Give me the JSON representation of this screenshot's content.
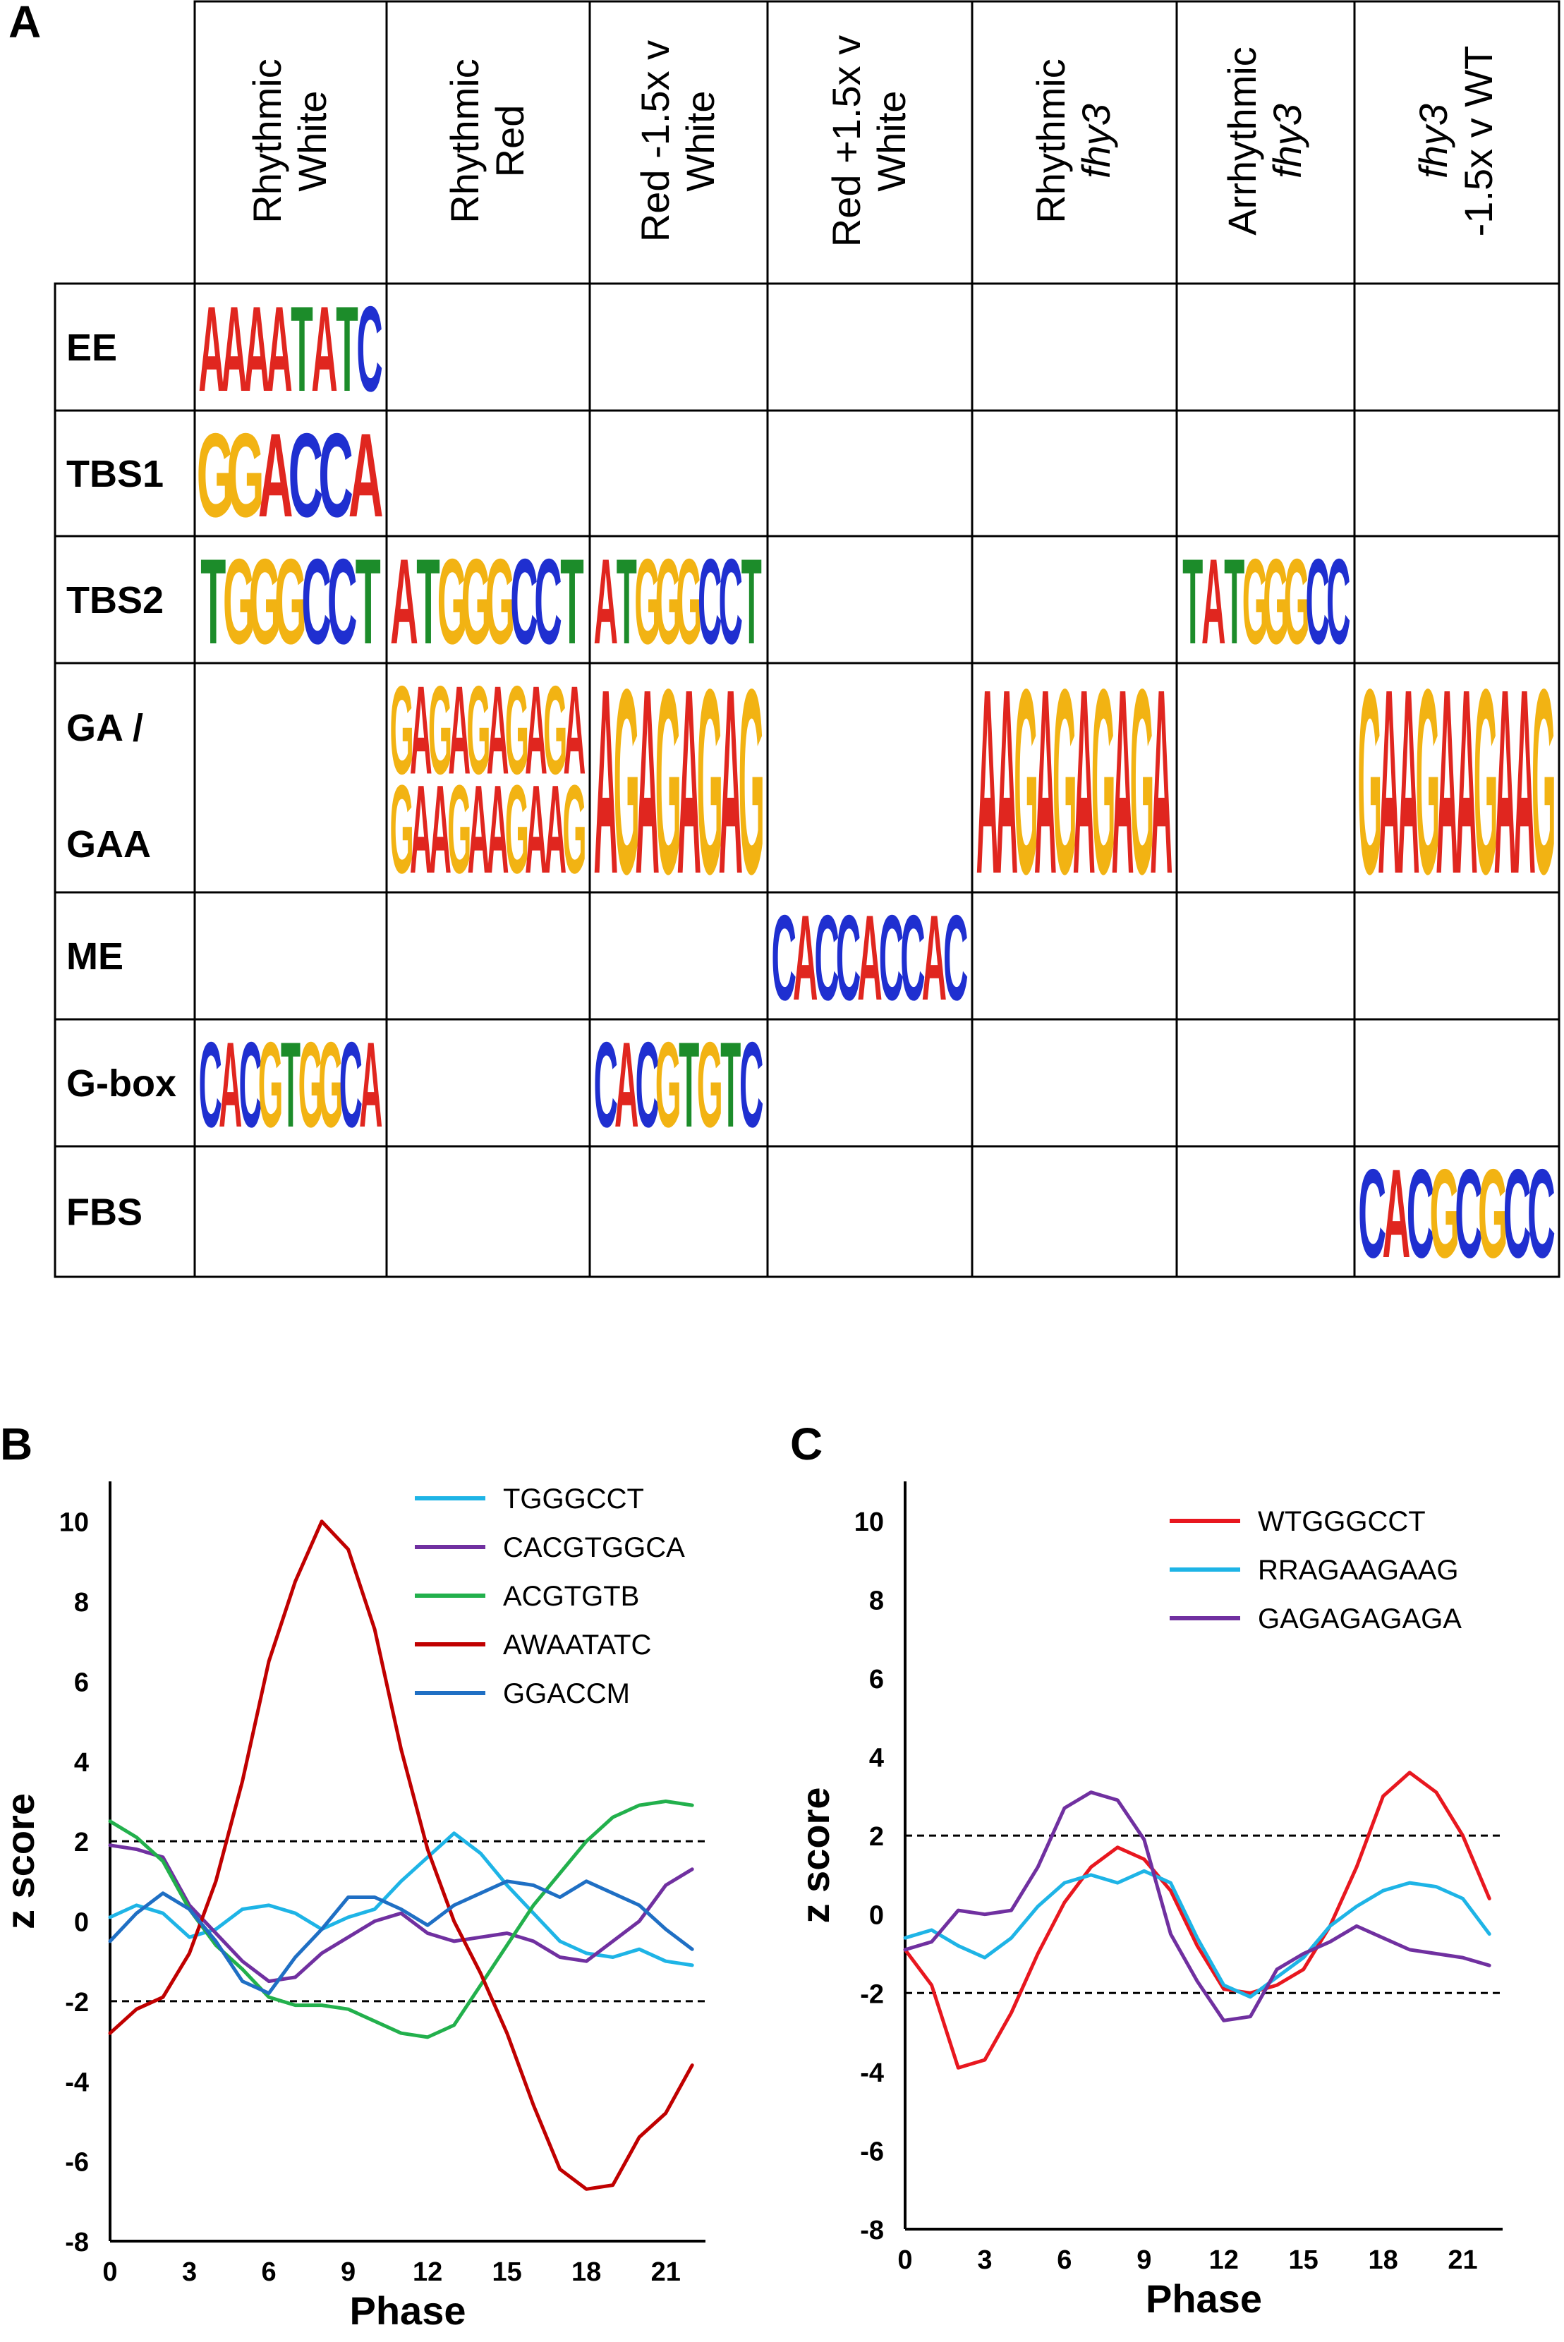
{
  "panel_a": {
    "letter": "A",
    "columns": [
      {
        "line1": "Rhythmic",
        "line2": "White",
        "italic1": false,
        "italic2": false
      },
      {
        "line1": "Rhythmic",
        "line2": "Red",
        "italic1": false,
        "italic2": false
      },
      {
        "line1": "Red -1.5x v",
        "line2": "White",
        "italic1": false,
        "italic2": false
      },
      {
        "line1": "Red +1.5x v",
        "line2": "White",
        "italic1": false,
        "italic2": false
      },
      {
        "line1": "Rhythmic",
        "line2": "fhy3",
        "italic1": false,
        "italic2": true
      },
      {
        "line1": "Arrhythmic",
        "line2": "fhy3",
        "italic1": false,
        "italic2": true
      },
      {
        "line1": "fhy3",
        "line2": "-1.5x v WT",
        "italic1": true,
        "italic2": false
      }
    ],
    "rows": [
      {
        "label": "EE",
        "label2": ""
      },
      {
        "label": "TBS1",
        "label2": ""
      },
      {
        "label": "TBS2",
        "label2": ""
      },
      {
        "label": "GA /",
        "label2": "GAA"
      },
      {
        "label": "ME",
        "label2": ""
      },
      {
        "label": "G-box",
        "label2": ""
      },
      {
        "label": "FBS",
        "label2": ""
      }
    ],
    "motifs": [
      {
        "row": 0,
        "col": 0,
        "seq": "AAAATATC"
      },
      {
        "row": 1,
        "col": 0,
        "seq": "GGACCA"
      },
      {
        "row": 2,
        "col": 0,
        "seq": "TGGGCCT"
      },
      {
        "row": 2,
        "col": 1,
        "seq": "ATGGGCCT"
      },
      {
        "row": 2,
        "col": 2,
        "seq": "ATGGGCCT"
      },
      {
        "row": 2,
        "col": 5,
        "seq": "TATGGGCC"
      },
      {
        "row": 3,
        "col": 1,
        "seq": "GAGAGAGAGA",
        "half": "top"
      },
      {
        "row": 3,
        "col": 1,
        "seq": "GAAGAAGAAG",
        "half": "bottom"
      },
      {
        "row": 3,
        "col": 2,
        "seq": "AGAGAGAG"
      },
      {
        "row": 3,
        "col": 4,
        "seq": "AAGAGAGAGA"
      },
      {
        "row": 3,
        "col": 6,
        "seq": "GAAGAAGAAG"
      },
      {
        "row": 4,
        "col": 3,
        "seq": "CACCACCAC"
      },
      {
        "row": 5,
        "col": 0,
        "seq": "CACGTGGCA"
      },
      {
        "row": 5,
        "col": 2,
        "seq": "CACGTGTC"
      },
      {
        "row": 6,
        "col": 6,
        "seq": "CACGCGCC"
      }
    ]
  },
  "chart_data": [
    {
      "panel": "B",
      "type": "line",
      "xlabel": "Phase",
      "ylabel": "z score",
      "xticks": [
        0,
        3,
        6,
        9,
        12,
        15,
        18,
        21
      ],
      "yticks": [
        10,
        8,
        6,
        4,
        2,
        0,
        -2,
        -4,
        -6,
        -8
      ],
      "xlim": [
        0,
        22.5
      ],
      "ylim": [
        -8,
        11
      ],
      "thresholds": [
        2,
        -2
      ],
      "x": [
        0,
        1,
        2,
        3,
        4,
        5,
        6,
        7,
        8,
        9,
        10,
        11,
        12,
        13,
        14,
        15,
        16,
        17,
        18,
        19,
        20,
        21,
        22
      ],
      "series": [
        {
          "name": "TGGGCCT",
          "color": "#1eb4e6",
          "values": [
            0.1,
            0.4,
            0.2,
            -0.4,
            -0.2,
            0.3,
            0.4,
            0.2,
            -0.2,
            0.1,
            0.3,
            1.0,
            1.6,
            2.2,
            1.7,
            0.9,
            0.2,
            -0.5,
            -0.8,
            -0.9,
            -0.7,
            -1.0,
            -1.1
          ]
        },
        {
          "name": "CACGTGGCA",
          "color": "#7030a0",
          "values": [
            1.9,
            1.8,
            1.6,
            0.4,
            -0.3,
            -1.0,
            -1.5,
            -1.4,
            -0.8,
            -0.4,
            0.0,
            0.2,
            -0.3,
            -0.5,
            -0.4,
            -0.3,
            -0.5,
            -0.9,
            -1.0,
            -0.5,
            0.0,
            0.9,
            1.3
          ]
        },
        {
          "name": "ACGTGTB",
          "color": "#22b04c",
          "values": [
            2.5,
            2.1,
            1.5,
            0.3,
            -0.6,
            -1.2,
            -1.9,
            -2.1,
            -2.1,
            -2.2,
            -2.5,
            -2.8,
            -2.9,
            -2.6,
            -1.6,
            -0.6,
            0.4,
            1.2,
            2.0,
            2.6,
            2.9,
            3.0,
            2.9
          ]
        },
        {
          "name": "AWAATATC",
          "color": "#c00000",
          "values": [
            -2.8,
            -2.2,
            -1.9,
            -0.8,
            1.0,
            3.5,
            6.5,
            8.5,
            10.0,
            9.3,
            7.3,
            4.3,
            1.8,
            0.0,
            -1.3,
            -2.8,
            -4.6,
            -6.2,
            -6.7,
            -6.6,
            -5.4,
            -4.8,
            -3.6
          ]
        },
        {
          "name": "GGACCM",
          "color": "#1f6fc4",
          "values": [
            -0.5,
            0.2,
            0.7,
            0.3,
            -0.5,
            -1.5,
            -1.8,
            -0.9,
            -0.2,
            0.6,
            0.6,
            0.3,
            -0.1,
            0.4,
            0.7,
            1.0,
            0.9,
            0.6,
            1.0,
            0.7,
            0.4,
            -0.2,
            -0.7
          ]
        }
      ]
    },
    {
      "panel": "C",
      "type": "line",
      "xlabel": "Phase",
      "ylabel": "z score",
      "xticks": [
        0,
        3,
        6,
        9,
        12,
        15,
        18,
        21
      ],
      "yticks": [
        10,
        8,
        6,
        4,
        2,
        0,
        -2,
        -4,
        -6,
        -8
      ],
      "xlim": [
        0,
        22.5
      ],
      "ylim": [
        -8,
        11
      ],
      "thresholds": [
        2,
        -2
      ],
      "x": [
        0,
        1,
        2,
        3,
        4,
        5,
        6,
        7,
        8,
        9,
        10,
        11,
        12,
        13,
        14,
        15,
        16,
        17,
        18,
        19,
        20,
        21,
        22
      ],
      "series": [
        {
          "name": "WTGGGCCT",
          "color": "#e8171f",
          "values": [
            -0.9,
            -1.8,
            -3.9,
            -3.7,
            -2.5,
            -1.0,
            0.3,
            1.2,
            1.7,
            1.4,
            0.6,
            -0.8,
            -1.9,
            -2.0,
            -1.8,
            -1.4,
            -0.3,
            1.2,
            3.0,
            3.6,
            3.1,
            2.0,
            0.4
          ]
        },
        {
          "name": "RRAGAAGAAG",
          "color": "#1eb4e6",
          "values": [
            -0.6,
            -0.4,
            -0.8,
            -1.1,
            -0.6,
            0.2,
            0.8,
            1.0,
            0.8,
            1.1,
            0.8,
            -0.6,
            -1.8,
            -2.1,
            -1.6,
            -1.1,
            -0.3,
            0.2,
            0.6,
            0.8,
            0.7,
            0.4,
            -0.5
          ]
        },
        {
          "name": "GAGAGAGAGA",
          "color": "#7030a0",
          "values": [
            -0.9,
            -0.7,
            0.1,
            0.0,
            0.1,
            1.2,
            2.7,
            3.1,
            2.9,
            1.9,
            -0.5,
            -1.7,
            -2.7,
            -2.6,
            -1.4,
            -1.0,
            -0.7,
            -0.3,
            -0.6,
            -0.9,
            -1.0,
            -1.1,
            -1.3
          ]
        }
      ]
    }
  ]
}
